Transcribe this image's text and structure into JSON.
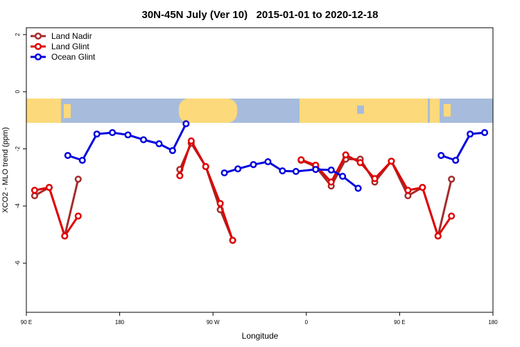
{
  "chart_data": {
    "type": "line",
    "title": "30N-45N July (Ver 10)   2015-01-01 to 2020-12-18",
    "xlabel": "Longitude",
    "ylabel": "XCO2 - MLO trend (ppm)",
    "xlim": [
      90,
      540
    ],
    "ylim": [
      -7.72,
      2.24
    ],
    "xticks": [
      {
        "value": 90,
        "label": "90 E"
      },
      180,
      {
        "value": 270,
        "label": "90 W"
      },
      {
        "value": 360,
        "label": "0"
      },
      {
        "value": 450,
        "label": "90 E"
      },
      {
        "value": 540,
        "label": "180"
      }
    ],
    "yticks": [
      -6,
      -4,
      -2,
      0,
      2
    ],
    "legend": "upper left",
    "series": [
      {
        "name": "Land Nadir",
        "color": "#a52a2a",
        "x": [
          98,
          112,
          127,
          140,
          null,
          238,
          249,
          263,
          277,
          289,
          null,
          355,
          369,
          384,
          398,
          412,
          426,
          442,
          458,
          472,
          487,
          500
        ],
        "values": [
          -3.64,
          -3.35,
          -5.05,
          -3.06,
          null,
          -2.72,
          -1.8,
          -2.62,
          -4.13,
          -5.2,
          null,
          -2.4,
          -2.62,
          -3.3,
          -2.36,
          -2.36,
          -3.16,
          -2.43,
          -3.64,
          -3.35,
          -5.05,
          -3.06
        ]
      },
      {
        "name": "Land Glint",
        "color": "#e00000",
        "x": [
          98,
          112,
          127,
          140,
          null,
          238,
          249,
          263,
          277,
          289,
          null,
          355,
          369,
          384,
          398,
          412,
          426,
          442,
          458,
          472,
          487,
          500
        ],
        "values": [
          -3.45,
          -3.35,
          -5.05,
          -4.35,
          null,
          -2.94,
          -1.72,
          -2.62,
          -3.91,
          -5.2,
          null,
          -2.38,
          -2.57,
          -3.16,
          -2.21,
          -2.48,
          -3.04,
          -2.43,
          -3.45,
          -3.35,
          -5.05,
          -4.35
        ]
      },
      {
        "name": "Ocean Glint",
        "color": "#0000e0",
        "x": [
          130,
          144,
          158,
          173,
          188,
          203,
          218,
          231,
          244,
          null,
          281,
          294,
          309,
          323,
          337,
          350,
          369,
          384,
          395,
          410,
          null,
          490,
          504,
          518,
          532
        ],
        "values": [
          -2.23,
          -2.4,
          -1.48,
          -1.43,
          -1.51,
          -1.68,
          -1.82,
          -2.06,
          -1.12,
          null,
          -2.84,
          -2.7,
          -2.55,
          -2.45,
          -2.77,
          -2.79,
          -2.72,
          -2.74,
          -2.96,
          -3.38,
          null,
          -2.23,
          -2.4,
          -1.48,
          -1.43
        ]
      }
    ]
  }
}
